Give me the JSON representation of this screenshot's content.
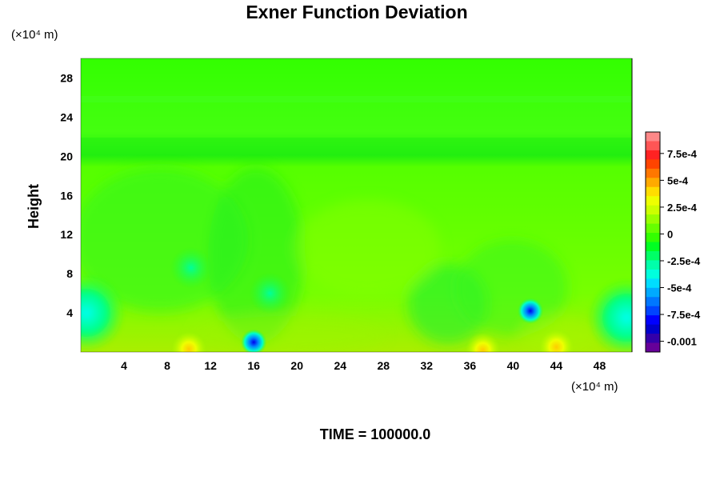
{
  "chart_data": {
    "type": "heatmap",
    "title": "Exner Function Deviation",
    "ylabel": "Height",
    "y_units": "(×10⁴ m)",
    "x_units": "(×10⁴ m)",
    "xlim": [
      0,
      51
    ],
    "ylim": [
      0,
      30
    ],
    "x_ticks": [
      "4",
      "8",
      "12",
      "16",
      "20",
      "24",
      "28",
      "32",
      "36",
      "40",
      "44",
      "48"
    ],
    "y_ticks": [
      "4",
      "8",
      "12",
      "16",
      "20",
      "24",
      "28"
    ],
    "colorbar": {
      "range": [
        -0.0011,
        0.00095
      ],
      "labels": [
        "7.5e-4",
        "5e-4",
        "2.5e-4",
        "0",
        "-2.5e-4",
        "-5e-4",
        "-7.5e-4",
        "-0.001"
      ]
    },
    "features": [
      {
        "x": 16.0,
        "y": 1.0,
        "value": -0.00075
      },
      {
        "x": 41.6,
        "y": 4.2,
        "value": -0.0007
      },
      {
        "x": 10.2,
        "y": 8.6,
        "value": -0.0003
      },
      {
        "x": 17.5,
        "y": 6.0,
        "value": -0.00025
      },
      {
        "x": 0.5,
        "y": 4.0,
        "value": -0.0005
      },
      {
        "x": 50.5,
        "y": 3.5,
        "value": -0.0005
      },
      {
        "x": 37.2,
        "y": 0.2,
        "value": 0.0003
      },
      {
        "x": 10.0,
        "y": 0.3,
        "value": 0.0002
      },
      {
        "x": 44.0,
        "y": 0.5,
        "value": 0.0001
      }
    ],
    "footer": "TIME = 100000.0"
  }
}
